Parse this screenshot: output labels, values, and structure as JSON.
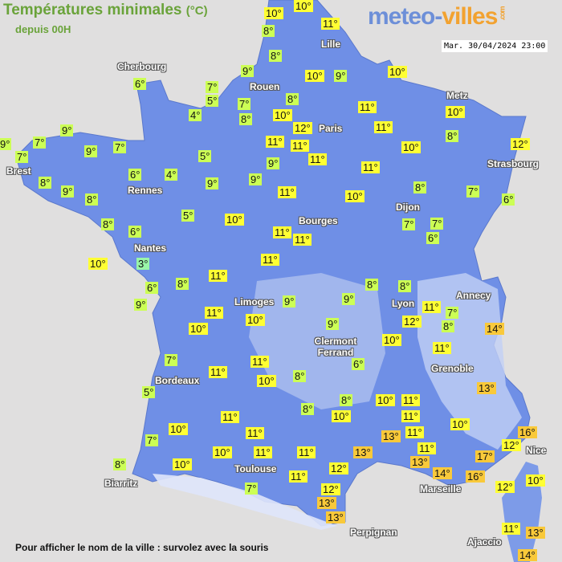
{
  "header": {
    "title": "Températures minimales",
    "title_unit": "(°C)",
    "subtitle": "depuis 00H",
    "logo_part1": "meteo-",
    "logo_part2": "villes",
    "logo_suffix": ".com",
    "timestamp": "Mar. 30/04/2024 23:00"
  },
  "footer": {
    "hint": "Pour afficher le nom de la ville : survolez avec la souris"
  },
  "colors": {
    "cold": "#99f5a8",
    "cool": "#ccff55",
    "mild": "#ffff33",
    "warm": "#f9c93a",
    "land": "#6f8fe6",
    "sea": "#e0dfdf"
  },
  "cities": [
    "Cherbourg",
    "Rouen",
    "Lille",
    "Paris",
    "Metz",
    "Strasbourg",
    "Brest",
    "Rennes",
    "Nantes",
    "Bourges",
    "Dijon",
    "Limoges",
    "Lyon",
    "Annecy",
    "Clermont Ferrand",
    "Grenoble",
    "Bordeaux",
    "Toulouse",
    "Biarritz",
    "Marseille",
    "Nice",
    "Perpignan",
    "Ajaccio"
  ],
  "readings": [
    "10°",
    "10°",
    "8°",
    "11°",
    "8°",
    "9°",
    "10°",
    "9°",
    "10°",
    "6°",
    "7°",
    "5°",
    "7°",
    "4°",
    "8°",
    "8°",
    "10°",
    "11°",
    "12°",
    "11°",
    "10°",
    "8°",
    "9°",
    "7°",
    "7°",
    "9°",
    "9°",
    "7°",
    "11°",
    "11°",
    "11°",
    "10°",
    "12°",
    "5°",
    "8°",
    "9°",
    "8°",
    "6°",
    "4°",
    "9°",
    "9°",
    "9°",
    "11°",
    "11°",
    "10°",
    "8°",
    "7°",
    "6°",
    "8°",
    "6°",
    "5°",
    "10°",
    "11°",
    "11°",
    "7°",
    "7°",
    "6°",
    "10°",
    "3°",
    "11°",
    "6°",
    "8°",
    "11°",
    "9°",
    "9°",
    "8°",
    "8°",
    "9°",
    "11°",
    "7°",
    "12°",
    "8°",
    "14°",
    "11°",
    "10°",
    "10°",
    "9°",
    "10°",
    "11°",
    "7°",
    "11°",
    "11°",
    "10°",
    "8°",
    "6°",
    "13°",
    "5°",
    "8°",
    "8°",
    "10°",
    "11°",
    "11°",
    "10°",
    "10°",
    "11°",
    "11°",
    "11°",
    "13°",
    "16°",
    "10°",
    "7°",
    "12°",
    "10°",
    "11°",
    "11°",
    "11°",
    "13°",
    "17°",
    "13°",
    "14°",
    "8°",
    "10°",
    "12°",
    "16°",
    "11°",
    "12°",
    "10°",
    "7°",
    "12°",
    "13°",
    "13°",
    "11°",
    "13°",
    "14°"
  ]
}
